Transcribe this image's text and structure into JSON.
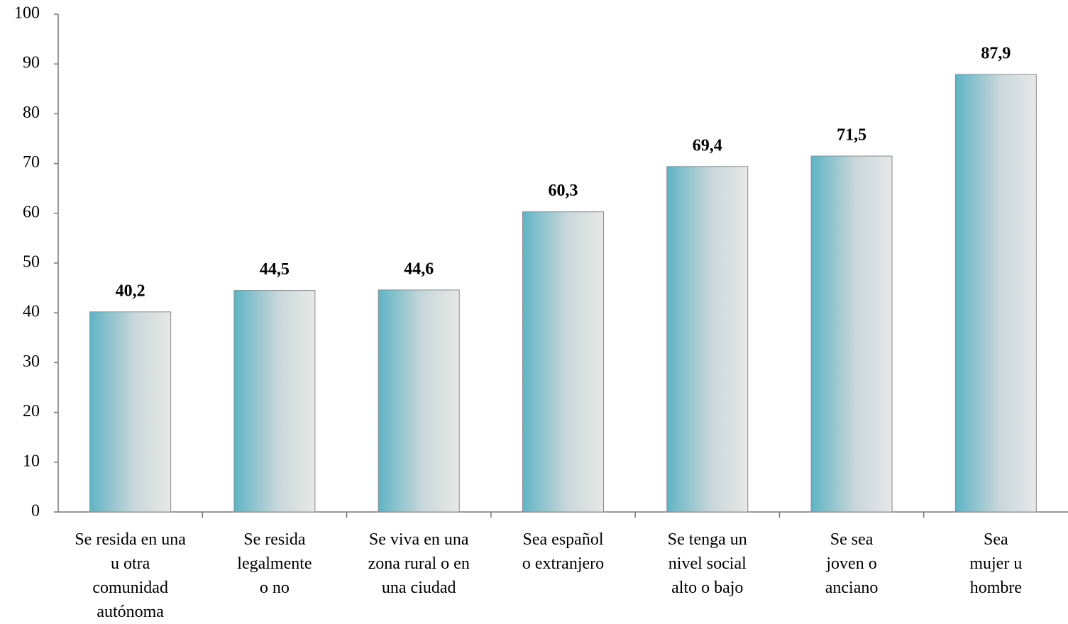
{
  "chart_data": {
    "type": "bar",
    "categories": [
      "Se resida en una\nu otra\ncomunidad\nautónoma",
      "Se resida\nlegalmente\no no",
      "Se viva en una\nzona rural o en\nuna ciudad",
      "Sea español\no extranjero",
      "Se tenga un\nnivel social\nalto o bajo",
      "Se sea\njoven o\nanciano",
      "Sea\nmujer u\nhombre"
    ],
    "values": [
      40.2,
      44.5,
      44.6,
      60.3,
      69.4,
      71.5,
      87.9
    ],
    "value_labels": [
      "40,2",
      "44,5",
      "44,6",
      "60,3",
      "69,4",
      "71,5",
      "87,9"
    ],
    "color": "#5fb4c6",
    "ylim": [
      0,
      100
    ],
    "yticks": [
      0,
      10,
      20,
      30,
      40,
      50,
      60,
      70,
      80,
      90,
      100
    ]
  }
}
